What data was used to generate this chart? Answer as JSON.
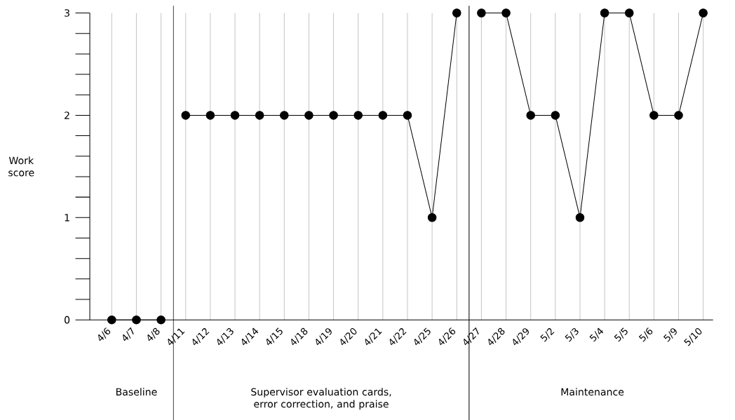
{
  "chart_data": {
    "type": "line",
    "ylabel": "Work score",
    "categories": [
      "4/6",
      "4/7",
      "4/8",
      "4/11",
      "4/12",
      "4/13",
      "4/14",
      "4/15",
      "4/18",
      "4/19",
      "4/20",
      "4/21",
      "4/22",
      "4/25",
      "4/26",
      "4/27",
      "4/28",
      "4/29",
      "5/2",
      "5/3",
      "5/4",
      "5/5",
      "5/6",
      "5/9",
      "5/10"
    ],
    "series": [
      {
        "color": "#000000",
        "values": [
          0,
          0,
          0,
          null,
          null,
          null,
          null,
          null,
          null,
          null,
          null,
          null,
          null,
          null,
          null,
          null,
          null,
          null,
          null,
          null,
          null,
          null,
          null,
          null,
          null
        ]
      },
      {
        "color": "#000000",
        "values": [
          null,
          null,
          null,
          2,
          2,
          2,
          2,
          2,
          2,
          2,
          2,
          2,
          2,
          1,
          3,
          null,
          null,
          null,
          null,
          null,
          null,
          null,
          null,
          null,
          null
        ]
      },
      {
        "color": "#000000",
        "values": [
          null,
          null,
          null,
          null,
          null,
          null,
          null,
          null,
          null,
          null,
          null,
          null,
          null,
          null,
          null,
          3,
          3,
          2,
          2,
          1,
          3,
          3,
          2,
          2,
          3
        ]
      }
    ],
    "ylim": [
      0,
      3
    ],
    "yticks": [
      0,
      1,
      2,
      3
    ],
    "annotations": [
      "Baseline",
      "Supervisor evaluation cards, error correction, and praise",
      "Maintenance"
    ],
    "grid": "x",
    "marker": "circle",
    "line_style": "solid"
  }
}
